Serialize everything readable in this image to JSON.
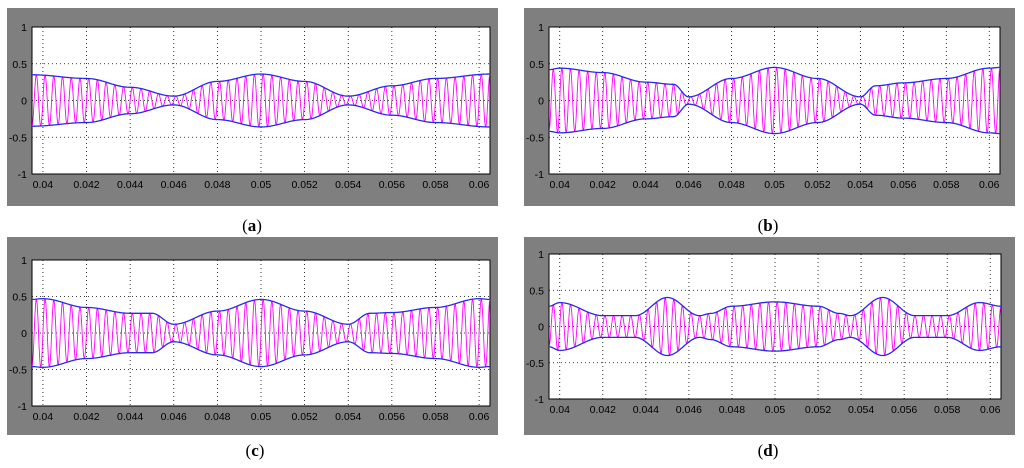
{
  "figure": {
    "panels": [
      {
        "id": "a",
        "caption_open": "(",
        "caption_letter": "a",
        "caption_close": ")"
      },
      {
        "id": "b",
        "caption_open": "(",
        "caption_letter": "b",
        "caption_close": ")"
      },
      {
        "id": "c",
        "caption_open": "(",
        "caption_letter": "c",
        "caption_close": ")"
      },
      {
        "id": "d",
        "caption_open": "(",
        "caption_letter": "d",
        "caption_close": ")"
      }
    ]
  },
  "colors": {
    "frame": "#7f7f7f",
    "envelope": "#2a2ae6",
    "signal": "#ff00ff",
    "grid": "#000000"
  },
  "chart_data": [
    {
      "panel": "a",
      "type": "line",
      "xlim": [
        0.0395,
        0.0605
      ],
      "ylim": [
        -1,
        1
      ],
      "xticks": [
        "0.04",
        "0.042",
        "0.044",
        "0.046",
        "0.048",
        "0.05",
        "0.052",
        "0.054",
        "0.056",
        "0.058",
        "0.06"
      ],
      "yticks": [
        "1",
        "0.5",
        "0",
        "-0.5",
        "-1"
      ],
      "grid": true,
      "signal_frequency_hz": 2500,
      "series": [
        {
          "role": "envelope-upper",
          "x": [
            0.0395,
            0.042,
            0.044,
            0.046,
            0.048,
            0.05,
            0.052,
            0.054,
            0.056,
            0.058,
            0.0605
          ],
          "y": [
            0.35,
            0.3,
            0.18,
            0.06,
            0.26,
            0.36,
            0.26,
            0.06,
            0.2,
            0.3,
            0.36
          ]
        },
        {
          "role": "envelope-lower",
          "x": [
            0.0395,
            0.042,
            0.044,
            0.046,
            0.048,
            0.05,
            0.052,
            0.054,
            0.056,
            0.058,
            0.0605
          ],
          "y": [
            -0.35,
            -0.3,
            -0.18,
            -0.06,
            -0.26,
            -0.36,
            -0.26,
            -0.06,
            -0.2,
            -0.3,
            -0.36
          ]
        }
      ]
    },
    {
      "panel": "b",
      "type": "line",
      "xlim": [
        0.0395,
        0.0605
      ],
      "ylim": [
        -1,
        1
      ],
      "xticks": [
        "0.04",
        "0.042",
        "0.044",
        "0.046",
        "0.048",
        "0.05",
        "0.052",
        "0.054",
        "0.056",
        "0.058",
        "0.06"
      ],
      "yticks": [
        "1",
        "0.5",
        "0",
        "-0.5",
        "-1"
      ],
      "grid": true,
      "signal_frequency_hz": 2500,
      "series": [
        {
          "role": "envelope-upper",
          "x": [
            0.0395,
            0.04,
            0.042,
            0.044,
            0.0453,
            0.046,
            0.048,
            0.05,
            0.052,
            0.054,
            0.0547,
            0.056,
            0.058,
            0.06,
            0.0605
          ],
          "y": [
            0.42,
            0.44,
            0.38,
            0.25,
            0.22,
            0.05,
            0.3,
            0.45,
            0.3,
            0.05,
            0.2,
            0.24,
            0.3,
            0.44,
            0.45
          ]
        },
        {
          "role": "envelope-lower",
          "x": [
            0.0395,
            0.04,
            0.042,
            0.044,
            0.0453,
            0.046,
            0.048,
            0.05,
            0.052,
            0.054,
            0.0547,
            0.056,
            0.058,
            0.06,
            0.0605
          ],
          "y": [
            -0.42,
            -0.44,
            -0.38,
            -0.25,
            -0.22,
            -0.05,
            -0.3,
            -0.45,
            -0.3,
            -0.05,
            -0.2,
            -0.24,
            -0.3,
            -0.44,
            -0.45
          ]
        }
      ]
    },
    {
      "panel": "c",
      "type": "line",
      "xlim": [
        0.0395,
        0.0605
      ],
      "ylim": [
        -1,
        1
      ],
      "xticks": [
        "0.04",
        "0.042",
        "0.044",
        "0.046",
        "0.048",
        "0.05",
        "0.052",
        "0.054",
        "0.056",
        "0.058",
        "0.06"
      ],
      "yticks": [
        "1",
        "0.5",
        "0",
        "-0.5",
        "-1"
      ],
      "grid": true,
      "signal_frequency_hz": 2500,
      "series": [
        {
          "role": "envelope-upper",
          "x": [
            0.0395,
            0.04,
            0.042,
            0.044,
            0.045,
            0.046,
            0.048,
            0.05,
            0.052,
            0.054,
            0.055,
            0.056,
            0.058,
            0.06,
            0.0605
          ],
          "y": [
            0.46,
            0.47,
            0.35,
            0.27,
            0.27,
            0.12,
            0.3,
            0.46,
            0.3,
            0.12,
            0.27,
            0.28,
            0.35,
            0.47,
            0.46
          ]
        },
        {
          "role": "envelope-lower",
          "x": [
            0.0395,
            0.04,
            0.042,
            0.044,
            0.045,
            0.046,
            0.048,
            0.05,
            0.052,
            0.054,
            0.055,
            0.056,
            0.058,
            0.06,
            0.0605
          ],
          "y": [
            -0.46,
            -0.47,
            -0.35,
            -0.27,
            -0.27,
            -0.12,
            -0.3,
            -0.46,
            -0.3,
            -0.12,
            -0.27,
            -0.28,
            -0.35,
            -0.47,
            -0.46
          ]
        }
      ]
    },
    {
      "panel": "d",
      "type": "line",
      "xlim": [
        0.0395,
        0.0605
      ],
      "ylim": [
        -1,
        1
      ],
      "xticks": [
        "0.04",
        "0.042",
        "0.044",
        "0.046",
        "0.048",
        "0.05",
        "0.052",
        "0.054",
        "0.056",
        "0.058",
        "0.06"
      ],
      "yticks": [
        "1",
        "0.5",
        "0",
        "-0.5",
        "-1"
      ],
      "grid": true,
      "signal_frequency_hz": 2500,
      "series": [
        {
          "role": "envelope-upper",
          "x": [
            0.0395,
            0.04,
            0.042,
            0.0435,
            0.045,
            0.0465,
            0.047,
            0.048,
            0.05,
            0.052,
            0.053,
            0.0535,
            0.055,
            0.0565,
            0.058,
            0.0595,
            0.0605
          ],
          "y": [
            0.28,
            0.33,
            0.15,
            0.15,
            0.4,
            0.15,
            0.18,
            0.28,
            0.34,
            0.28,
            0.18,
            0.15,
            0.4,
            0.15,
            0.15,
            0.33,
            0.28
          ]
        },
        {
          "role": "envelope-lower",
          "x": [
            0.0395,
            0.04,
            0.042,
            0.0435,
            0.045,
            0.0465,
            0.047,
            0.048,
            0.05,
            0.052,
            0.053,
            0.0535,
            0.055,
            0.0565,
            0.058,
            0.0595,
            0.0605
          ],
          "y": [
            -0.28,
            -0.33,
            -0.15,
            -0.15,
            -0.4,
            -0.15,
            -0.18,
            -0.28,
            -0.34,
            -0.28,
            -0.18,
            -0.15,
            -0.4,
            -0.15,
            -0.15,
            -0.33,
            -0.28
          ]
        }
      ]
    }
  ]
}
